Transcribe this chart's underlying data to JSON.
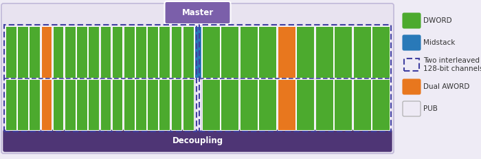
{
  "fig_w": 7.0,
  "fig_h": 2.31,
  "dpi": 100,
  "bg_color": "#eeebf5",
  "outer_bg": "#e8e3f0",
  "outer_edge": "#c0b8d8",
  "decoupling_color": "#4e3575",
  "decoupling_text": "Decoupling",
  "master_color": "#7b5faa",
  "master_text": "Master",
  "dword_color": "#4caa2e",
  "midstack_color": "#2979b8",
  "aword_color": "#e8771e",
  "pub_color": "#eeeaf5",
  "channel_dot_color": "#4040a0",
  "white": "#ffffff",
  "legend_items": [
    {
      "label": "DWORD",
      "color": "#4caa2e",
      "style": "solid"
    },
    {
      "label": "Midstack",
      "color": "#2979b8",
      "style": "solid"
    },
    {
      "label": "Two interleaved\n128-bit channels",
      "color": "#4040a0",
      "style": "dashed"
    },
    {
      "label": "Dual AWORD",
      "color": "#e8771e",
      "style": "solid"
    },
    {
      "label": "PUB",
      "color": "#eeeaf5",
      "style": "solid"
    }
  ],
  "left_cols": [
    "dword",
    "dword",
    "dword",
    "aword",
    "dword",
    "dword",
    "dword",
    "dword",
    "dword",
    "dword",
    "dword",
    "dword",
    "dword",
    "dword",
    "dword",
    "dword"
  ],
  "right_cols": [
    "dword",
    "dword",
    "dword",
    "dword",
    "aword",
    "dword",
    "dword",
    "dword",
    "dword",
    "dword"
  ]
}
